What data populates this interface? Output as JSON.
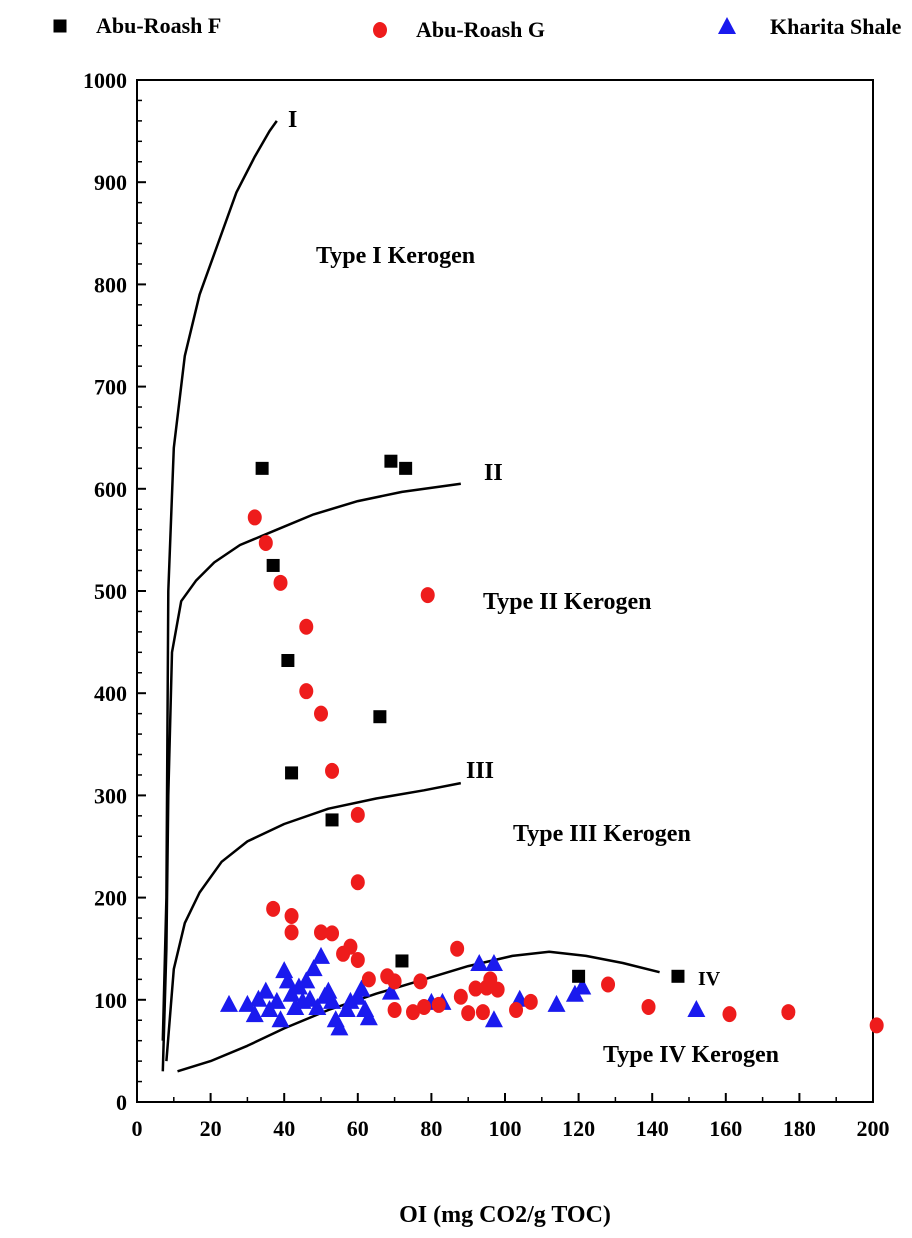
{
  "chart_data": {
    "type": "scatter",
    "xlabel": "OI (mg CO2/g TOC)",
    "ylabel": "",
    "xlim": [
      0,
      200
    ],
    "ylim": [
      0,
      1000
    ],
    "x_ticks": [
      "0",
      "20",
      "40",
      "60",
      "80",
      "100",
      "120",
      "140",
      "160",
      "180",
      "200"
    ],
    "y_ticks": [
      "0",
      "100",
      "200",
      "300",
      "400",
      "500",
      "600",
      "700",
      "800",
      "900",
      "1000"
    ],
    "legend_position": "top",
    "series": [
      {
        "name": "Abu-Roash F",
        "marker": "square",
        "color": "#000000",
        "points": [
          [
            34,
            620
          ],
          [
            69,
            627
          ],
          [
            73,
            620
          ],
          [
            37,
            525
          ],
          [
            41,
            432
          ],
          [
            66,
            377
          ],
          [
            42,
            322
          ],
          [
            53,
            276
          ],
          [
            72,
            138
          ],
          [
            120,
            123
          ],
          [
            147,
            123
          ]
        ]
      },
      {
        "name": "Abu-Roash G",
        "marker": "circle",
        "color": "#ee1c1c",
        "points": [
          [
            32,
            572
          ],
          [
            35,
            547
          ],
          [
            39,
            508
          ],
          [
            46,
            465
          ],
          [
            46,
            402
          ],
          [
            50,
            380
          ],
          [
            53,
            324
          ],
          [
            79,
            496
          ],
          [
            60,
            281
          ],
          [
            60,
            215
          ],
          [
            37,
            189
          ],
          [
            42,
            182
          ],
          [
            42,
            166
          ],
          [
            50,
            166
          ],
          [
            53,
            165
          ],
          [
            58,
            152
          ],
          [
            56,
            145
          ],
          [
            60,
            139
          ],
          [
            63,
            120
          ],
          [
            68,
            123
          ],
          [
            70,
            118
          ],
          [
            77,
            118
          ],
          [
            87,
            150
          ],
          [
            88,
            103
          ],
          [
            92,
            111
          ],
          [
            95,
            112
          ],
          [
            96,
            120
          ],
          [
            98,
            110
          ],
          [
            70,
            90
          ],
          [
            75,
            88
          ],
          [
            78,
            93
          ],
          [
            82,
            95
          ],
          [
            90,
            87
          ],
          [
            94,
            88
          ],
          [
            103,
            90
          ],
          [
            107,
            98
          ],
          [
            128,
            115
          ],
          [
            139,
            93
          ],
          [
            161,
            86
          ],
          [
            177,
            88
          ],
          [
            201,
            75
          ]
        ]
      },
      {
        "name": "Kharita Shale",
        "marker": "triangle",
        "color": "#1a1aee",
        "points": [
          [
            25,
            95
          ],
          [
            30,
            95
          ],
          [
            32,
            85
          ],
          [
            33,
            100
          ],
          [
            35,
            108
          ],
          [
            36,
            90
          ],
          [
            38,
            98
          ],
          [
            39,
            80
          ],
          [
            40,
            128
          ],
          [
            41,
            118
          ],
          [
            42,
            105
          ],
          [
            43,
            92
          ],
          [
            44,
            112
          ],
          [
            45,
            98
          ],
          [
            46,
            118
          ],
          [
            47,
            100
          ],
          [
            48,
            130
          ],
          [
            49,
            92
          ],
          [
            50,
            142
          ],
          [
            51,
            103
          ],
          [
            52,
            108
          ],
          [
            53,
            98
          ],
          [
            54,
            80
          ],
          [
            55,
            72
          ],
          [
            57,
            90
          ],
          [
            58,
            98
          ],
          [
            60,
            102
          ],
          [
            61,
            110
          ],
          [
            62,
            90
          ],
          [
            63,
            82
          ],
          [
            69,
            107
          ],
          [
            80,
            97
          ],
          [
            83,
            97
          ],
          [
            93,
            135
          ],
          [
            97,
            135
          ],
          [
            97,
            80
          ],
          [
            104,
            100
          ],
          [
            114,
            95
          ],
          [
            119,
            105
          ],
          [
            121,
            112
          ],
          [
            152,
            90
          ]
        ]
      }
    ],
    "curves": [
      {
        "label": "I",
        "points": [
          [
            7,
            60
          ],
          [
            8,
            200
          ],
          [
            8.5,
            500
          ],
          [
            10,
            640
          ],
          [
            13,
            730
          ],
          [
            17,
            790
          ],
          [
            22,
            840
          ],
          [
            27,
            890
          ],
          [
            32,
            925
          ],
          [
            36,
            950
          ],
          [
            38,
            960
          ]
        ]
      },
      {
        "label": "II",
        "points": [
          [
            7,
            30
          ],
          [
            8,
            150
          ],
          [
            8.5,
            300
          ],
          [
            9.5,
            440
          ],
          [
            12,
            490
          ],
          [
            16,
            510
          ],
          [
            21,
            528
          ],
          [
            28,
            545
          ],
          [
            38,
            560
          ],
          [
            48,
            575
          ],
          [
            60,
            588
          ],
          [
            72,
            597
          ],
          [
            88,
            605
          ]
        ]
      },
      {
        "label": "III",
        "points": [
          [
            8,
            40
          ],
          [
            10,
            130
          ],
          [
            13,
            175
          ],
          [
            17,
            205
          ],
          [
            23,
            235
          ],
          [
            30,
            255
          ],
          [
            40,
            272
          ],
          [
            52,
            287
          ],
          [
            65,
            297
          ],
          [
            78,
            305
          ],
          [
            88,
            312
          ]
        ]
      },
      {
        "label": "IV",
        "points": [
          [
            11,
            30
          ],
          [
            20,
            40
          ],
          [
            30,
            55
          ],
          [
            40,
            72
          ],
          [
            52,
            90
          ],
          [
            65,
            106
          ],
          [
            78,
            120
          ],
          [
            90,
            133
          ],
          [
            102,
            143
          ],
          [
            112,
            147
          ],
          [
            122,
            143
          ],
          [
            132,
            136
          ],
          [
            142,
            127
          ]
        ]
      }
    ],
    "curve_labels": [
      "I",
      "II",
      "III",
      "IV"
    ],
    "annotations": [
      "Type I Kerogen",
      "Type II Kerogen",
      "Type III Kerogen",
      "Type IV Kerogen"
    ]
  }
}
